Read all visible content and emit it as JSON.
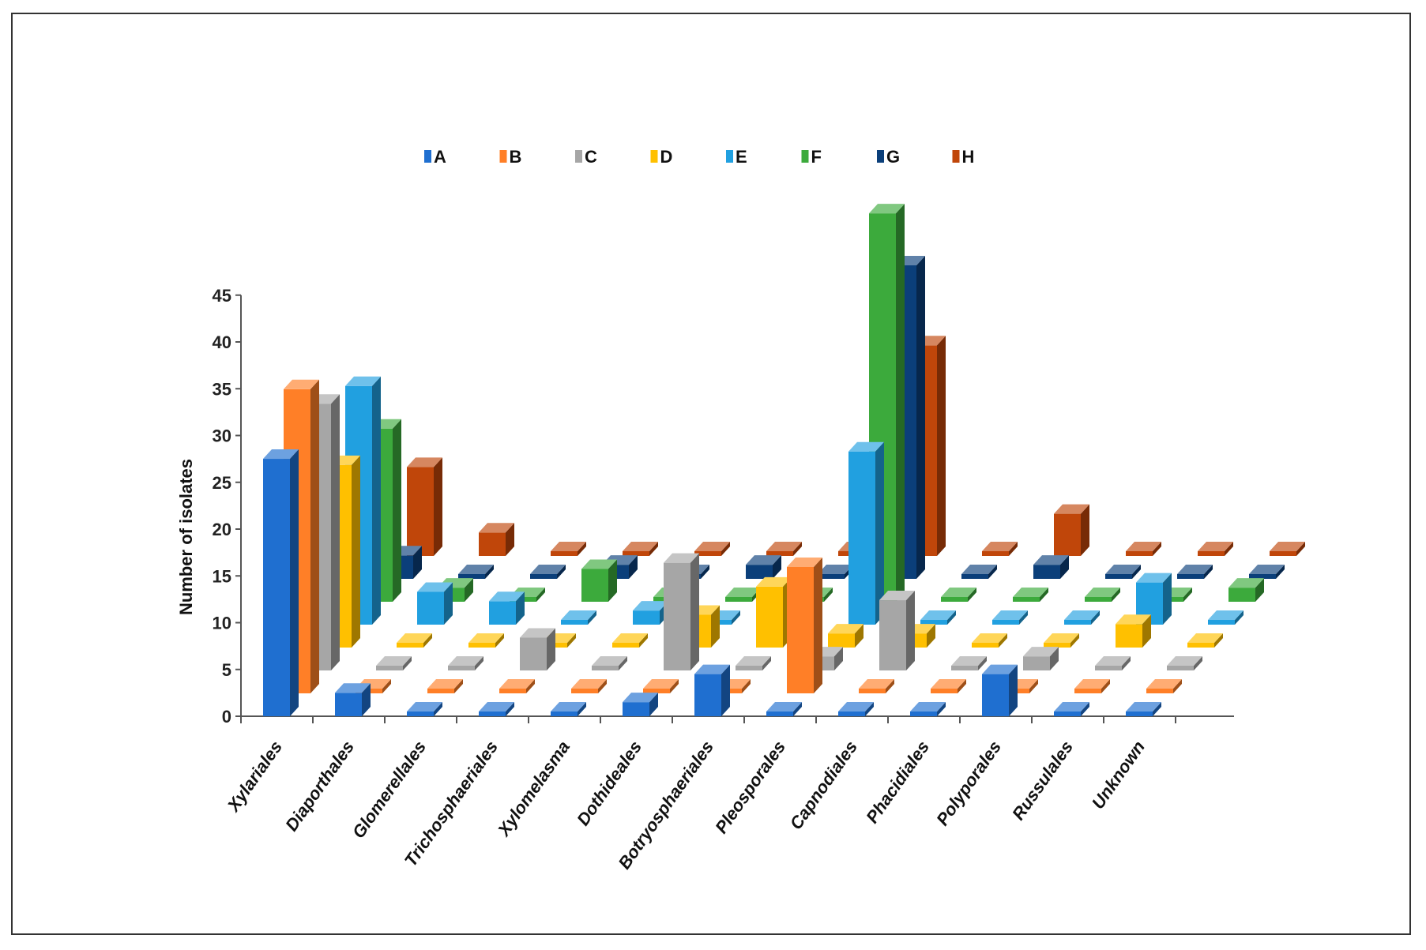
{
  "chart_data": {
    "type": "bar",
    "subtype": "3d-column",
    "title": "",
    "xlabel": "",
    "ylabel": "Number of isolates",
    "ylim": [
      0,
      45
    ],
    "yticks": [
      0,
      5,
      10,
      15,
      20,
      25,
      30,
      35,
      40,
      45
    ],
    "legend_position": "top",
    "categories": [
      "Xylariales",
      "Diaporthales",
      "Glomerellales",
      "Trichosphaeriales",
      "Xylomelasma",
      "Dothideales",
      "Botryosphaeriales",
      "Pleosporales",
      "Capnodiales",
      "Phacidiales",
      "Polyporales",
      "Russulales",
      "Unknown"
    ],
    "series": [
      {
        "name": "A",
        "color": "#1f6fd0",
        "values": [
          27,
          2,
          0,
          0,
          0,
          1,
          4,
          0,
          0,
          0,
          4,
          0,
          0
        ]
      },
      {
        "name": "B",
        "color": "#ff7f27",
        "values": [
          32,
          0,
          0,
          0,
          0,
          0,
          0,
          13,
          0,
          0,
          0,
          0,
          0
        ]
      },
      {
        "name": "C",
        "color": "#a6a6a6",
        "values": [
          28,
          0,
          0,
          3,
          0,
          11,
          0,
          1,
          7,
          0,
          1,
          0,
          0
        ]
      },
      {
        "name": "D",
        "color": "#ffc000",
        "values": [
          19,
          0,
          0,
          0,
          0,
          3,
          6,
          1,
          1,
          0,
          0,
          2,
          0
        ]
      },
      {
        "name": "E",
        "color": "#21a0e0",
        "values": [
          25,
          3,
          2,
          0,
          1,
          0,
          0,
          18,
          0,
          0,
          0,
          4,
          0
        ]
      },
      {
        "name": "F",
        "color": "#3caa3c",
        "values": [
          18,
          1,
          0,
          3,
          0,
          0,
          0,
          41,
          0,
          0,
          0,
          0,
          1
        ]
      },
      {
        "name": "G",
        "color": "#0b3f7a",
        "values": [
          2,
          0,
          0,
          1,
          0,
          1,
          0,
          33,
          0,
          1,
          0,
          0,
          0
        ]
      },
      {
        "name": "H",
        "color": "#c0460a",
        "values": [
          9,
          2,
          0,
          0,
          0,
          0,
          0,
          22,
          0,
          4,
          0,
          0,
          0
        ]
      }
    ]
  }
}
